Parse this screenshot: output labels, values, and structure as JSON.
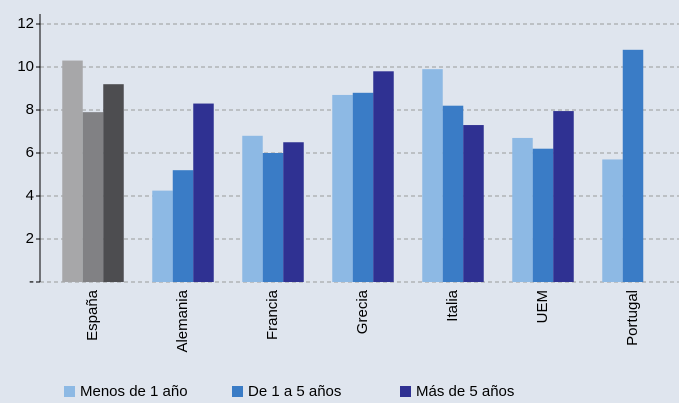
{
  "chart_data": {
    "type": "bar",
    "categories": [
      "España",
      "Alemania",
      "Francia",
      "Grecia",
      "Italia",
      "UEM",
      "Portugal"
    ],
    "series": [
      {
        "name": "Menos de 1 año",
        "color": "#8db9e4",
        "colors": [
          "#a7a7a9",
          "#8db9e4",
          "#8db9e4",
          "#8db9e4",
          "#8db9e4",
          "#8db9e4",
          "#8db9e4"
        ],
        "values": [
          10.3,
          4.25,
          6.8,
          8.7,
          9.9,
          6.7,
          5.7
        ]
      },
      {
        "name": "De 1 a 5 años",
        "color": "#3a7cc6",
        "colors": [
          "#818184",
          "#3a7cc6",
          "#3a7cc6",
          "#3a7cc6",
          "#3a7cc6",
          "#3a7cc6",
          "#3a7cc6"
        ],
        "values": [
          7.9,
          5.2,
          6.0,
          8.8,
          8.2,
          6.2,
          10.8
        ]
      },
      {
        "name": "Más de 5 años",
        "color": "#2f3192",
        "colors": [
          "#4d4d50",
          "#2f3192",
          "#2f3192",
          "#2f3192",
          "#2f3192",
          "#2f3192",
          "#2f3192"
        ],
        "values": [
          9.2,
          8.3,
          6.5,
          9.8,
          7.3,
          7.95,
          null
        ]
      }
    ],
    "ylim": [
      0,
      12
    ],
    "yticks": [
      {
        "value": 0,
        "label": "-"
      },
      2,
      4,
      6,
      8,
      10,
      12
    ],
    "grid": true,
    "legend": "bottom"
  }
}
